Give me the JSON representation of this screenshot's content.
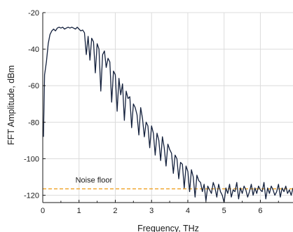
{
  "chart_data": {
    "type": "line",
    "title": "",
    "xlabel": "Frequency, THz",
    "ylabel": "FFT Amplitude, dBm",
    "xlim": [
      0,
      6.9
    ],
    "ylim": [
      -124,
      -20
    ],
    "grid": true,
    "legend": "none",
    "xticks": [
      0,
      1,
      2,
      3,
      4,
      5,
      6
    ],
    "yticks": [
      -120,
      -100,
      -80,
      -60,
      -40,
      -20
    ],
    "series": [
      {
        "color": "#14213d",
        "x": [
          0.02,
          0.05,
          0.1,
          0.15,
          0.2,
          0.25,
          0.3,
          0.35,
          0.4,
          0.45,
          0.5,
          0.55,
          0.6,
          0.65,
          0.7,
          0.75,
          0.8,
          0.85,
          0.9,
          0.95,
          1.0,
          1.05,
          1.1,
          1.15,
          1.2,
          1.25,
          1.3,
          1.35,
          1.4,
          1.45,
          1.5,
          1.55,
          1.6,
          1.65,
          1.7,
          1.75,
          1.8,
          1.85,
          1.9,
          1.95,
          2.0,
          2.05,
          2.1,
          2.15,
          2.2,
          2.25,
          2.3,
          2.35,
          2.4,
          2.45,
          2.5,
          2.55,
          2.6,
          2.65,
          2.7,
          2.75,
          2.8,
          2.85,
          2.9,
          2.95,
          3.0,
          3.05,
          3.1,
          3.15,
          3.2,
          3.25,
          3.3,
          3.35,
          3.4,
          3.45,
          3.5,
          3.55,
          3.6,
          3.65,
          3.7,
          3.75,
          3.8,
          3.85,
          3.9,
          3.95,
          4.0,
          4.05,
          4.1,
          4.15,
          4.2,
          4.25,
          4.3,
          4.35,
          4.4,
          4.45,
          4.5,
          4.55,
          4.6,
          4.65,
          4.7,
          4.75,
          4.8,
          4.85,
          4.9,
          4.95,
          5.0,
          5.05,
          5.1,
          5.15,
          5.2,
          5.25,
          5.3,
          5.35,
          5.4,
          5.45,
          5.5,
          5.55,
          5.6,
          5.65,
          5.7,
          5.75,
          5.8,
          5.85,
          5.9,
          5.95,
          6.0,
          6.05,
          6.1,
          6.15,
          6.2,
          6.25,
          6.3,
          6.35,
          6.4,
          6.45,
          6.5,
          6.55,
          6.6,
          6.65,
          6.7,
          6.75,
          6.8,
          6.85,
          6.9
        ],
        "y": [
          -88,
          -54,
          -47,
          -37,
          -32,
          -30,
          -29,
          -30,
          -28.5,
          -28,
          -28.5,
          -28,
          -29,
          -28.5,
          -28,
          -28.5,
          -28,
          -28.5,
          -29,
          -28,
          -29,
          -30,
          -29.5,
          -31,
          -43,
          -33,
          -46,
          -34,
          -36,
          -53,
          -37,
          -40,
          -63,
          -43,
          -41,
          -50,
          -45,
          -47,
          -69,
          -52,
          -54,
          -74,
          -56,
          -65,
          -59,
          -79,
          -63,
          -67,
          -66,
          -83,
          -70,
          -72,
          -76,
          -87,
          -72,
          -78,
          -88,
          -80,
          -82,
          -94,
          -82,
          -86,
          -98,
          -86,
          -90,
          -101,
          -88,
          -94,
          -104,
          -92,
          -95,
          -97,
          -108,
          -98,
          -100,
          -111,
          -102,
          -103,
          -116,
          -104,
          -107,
          -118,
          -106,
          -110,
          -121,
          -109,
          -112,
          -113,
          -118,
          -114,
          -123,
          -115,
          -117,
          -119,
          -113,
          -116,
          -121,
          -114,
          -118,
          -120,
          -124,
          -116,
          -119,
          -114,
          -121,
          -117,
          -118,
          -113,
          -122,
          -116,
          -119,
          -115,
          -117,
          -121,
          -118,
          -114,
          -120,
          -116,
          -119,
          -115,
          -117,
          -118,
          -113,
          -122,
          -116,
          -119,
          -115,
          -117,
          -120,
          -118,
          -114,
          -121,
          -116,
          -118,
          -115,
          -119,
          -117,
          -120,
          -116
        ]
      }
    ],
    "annotations": [
      {
        "text": "Noise floor",
        "y": -116.5,
        "color": "#f0a020",
        "style": "dashed"
      }
    ]
  }
}
